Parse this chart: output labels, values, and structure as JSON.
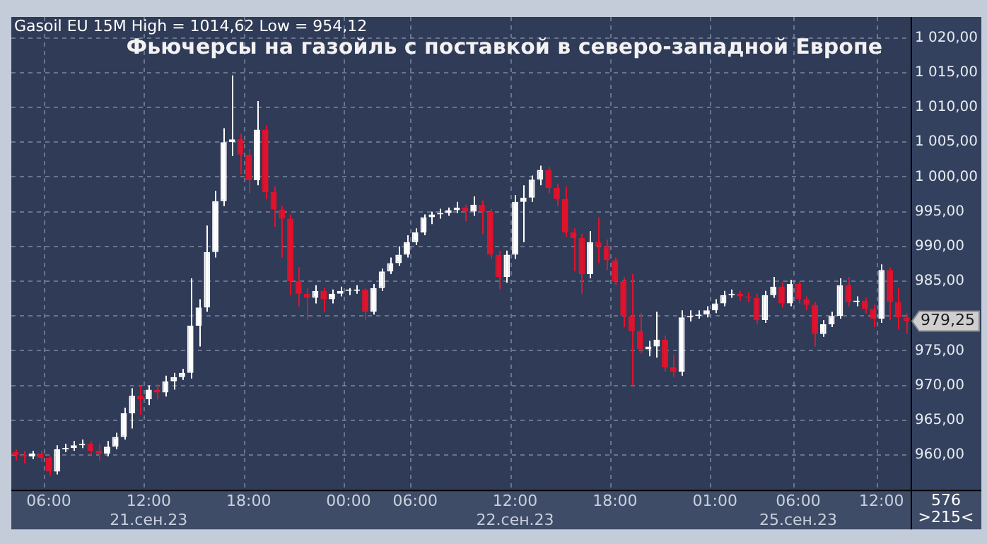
{
  "chart_data": {
    "type": "candlestick",
    "title": "Фьючерсы на газойль с поставкой в северо-западной Европе",
    "subtitle": "Gasoil EU 15M High = 1014,62 Low = 954,12",
    "categories": [
      null,
      null,
      null,
      null,
      "06:00",
      null,
      null,
      null,
      null,
      null,
      null,
      null,
      null,
      null,
      null,
      null,
      "12:00\n21.сен.23",
      null,
      null,
      null,
      null,
      null,
      null,
      null,
      null,
      null,
      null,
      null,
      "18:00",
      null,
      null,
      null,
      null,
      null,
      null,
      null,
      null,
      null,
      null,
      null,
      "00:00",
      null,
      null,
      null,
      null,
      null,
      null,
      null,
      "06:00",
      null,
      null,
      null,
      null,
      null,
      null,
      null,
      null,
      null,
      null,
      null,
      "12:00\n22.сен.23",
      null,
      null,
      null,
      null,
      null,
      null,
      null,
      null,
      null,
      null,
      null,
      "18:00",
      null,
      null,
      null,
      null,
      null,
      null,
      null,
      null,
      null,
      null,
      null,
      "01:00",
      null,
      null,
      null,
      null,
      null,
      null,
      null,
      null,
      null,
      "06:00\n25.сен.23",
      null,
      null,
      null,
      null,
      null,
      null,
      null,
      null,
      null,
      "12:00",
      null,
      null,
      null
    ],
    "colors": [
      "#e2122c",
      "#e2122c",
      "#ffffff",
      "#e2122c",
      "#e2122c",
      "#ffffff",
      "#ffffff",
      "#ffffff",
      "#ffffff",
      "#e2122c",
      "#e2122c",
      "#ffffff",
      "#ffffff",
      "#ffffff",
      "#ffffff",
      "#e2122c",
      "#ffffff",
      "#e2122c",
      "#ffffff",
      "#ffffff",
      "#ffffff",
      "#ffffff",
      "#ffffff",
      "#ffffff",
      "#ffffff",
      "#ffffff",
      "#ffffff",
      "#e2122c",
      "#e2122c",
      "#ffffff",
      "#e2122c",
      "#e2122c",
      "#e2122c",
      "#e2122c",
      "#e2122c",
      "#e2122c",
      "#ffffff",
      "#e2122c",
      "#ffffff",
      "#ffffff",
      "#ffffff",
      "#ffffff",
      "#e2122c",
      "#ffffff",
      "#ffffff",
      "#ffffff",
      "#ffffff",
      "#ffffff",
      "#ffffff",
      "#ffffff",
      "#ffffff",
      "#ffffff",
      "#ffffff",
      "#ffffff",
      "#e2122c",
      "#ffffff",
      "#e2122c",
      "#e2122c",
      "#e2122c",
      "#ffffff",
      "#ffffff",
      "#ffffff",
      "#ffffff",
      "#ffffff",
      "#e2122c",
      "#e2122c",
      "#e2122c",
      "#e2122c",
      "#e2122c",
      "#ffffff",
      "#e2122c",
      "#e2122c",
      "#e2122c",
      "#e2122c",
      "#e2122c",
      "#e2122c",
      "#ffffff",
      "#ffffff",
      "#e2122c",
      "#e2122c",
      "#ffffff",
      "#ffffff",
      "#ffffff",
      "#ffffff",
      "#ffffff",
      "#ffffff",
      "#ffffff",
      "#e2122c",
      "#e2122c",
      "#e2122c",
      "#ffffff",
      "#ffffff",
      "#e2122c",
      "#ffffff",
      "#e2122c",
      "#e2122c",
      "#e2122c",
      "#ffffff",
      "#ffffff",
      "#ffffff",
      "#e2122c",
      "#ffffff",
      "#e2122c",
      "#e2122c",
      "#ffffff",
      "#e2122c",
      "#e2122c",
      "#e2122c"
    ],
    "ohlc": [
      [
        960.4,
        960.8,
        959.2,
        960.0
      ],
      [
        960.0,
        960.6,
        958.8,
        959.8
      ],
      [
        959.8,
        960.6,
        959.4,
        960.2
      ],
      [
        960.2,
        960.6,
        959.0,
        959.6
      ],
      [
        959.6,
        959.8,
        957.0,
        957.6
      ],
      [
        957.6,
        961.4,
        957.2,
        960.8
      ],
      [
        960.8,
        961.6,
        960.4,
        961.0
      ],
      [
        961.0,
        962.0,
        960.6,
        961.4
      ],
      [
        961.4,
        962.2,
        961.0,
        961.6
      ],
      [
        961.6,
        962.0,
        960.0,
        960.6
      ],
      [
        960.6,
        961.6,
        959.2,
        960.2
      ],
      [
        960.2,
        962.0,
        959.8,
        961.2
      ],
      [
        961.2,
        963.2,
        960.8,
        962.6
      ],
      [
        962.6,
        966.8,
        962.2,
        966.0
      ],
      [
        966.0,
        969.6,
        963.8,
        968.5
      ],
      [
        968.5,
        970.0,
        965.8,
        968.0
      ],
      [
        968.0,
        970.0,
        967.2,
        969.4
      ],
      [
        969.4,
        970.2,
        968.0,
        969.0
      ],
      [
        969.0,
        971.4,
        968.4,
        970.6
      ],
      [
        970.6,
        971.8,
        969.4,
        971.2
      ],
      [
        971.2,
        972.4,
        970.8,
        971.8
      ],
      [
        971.8,
        985.4,
        971.0,
        978.6
      ],
      [
        978.6,
        982.4,
        975.6,
        981.2
      ],
      [
        981.2,
        993.0,
        980.6,
        989.2
      ],
      [
        989.2,
        998.0,
        988.4,
        996.5
      ],
      [
        996.5,
        1007.0,
        995.8,
        1005.0
      ],
      [
        1005.0,
        1014.6,
        1003.0,
        1005.4
      ],
      [
        1005.4,
        1006.2,
        1000.4,
        1003.2
      ],
      [
        1003.2,
        1004.0,
        997.6,
        999.5
      ],
      [
        999.5,
        1010.9,
        998.8,
        1006.8
      ],
      [
        1006.8,
        1007.4,
        996.8,
        997.8
      ],
      [
        997.8,
        998.6,
        992.8,
        995.3
      ],
      [
        995.3,
        995.8,
        988.4,
        994.0
      ],
      [
        994.0,
        994.6,
        983.0,
        985.0
      ],
      [
        985.0,
        987.0,
        981.4,
        983.2
      ],
      [
        983.2,
        984.0,
        979.4,
        982.6
      ],
      [
        982.6,
        984.4,
        981.8,
        983.6
      ],
      [
        983.6,
        984.0,
        980.6,
        982.4
      ],
      [
        982.4,
        983.8,
        981.8,
        983.2
      ],
      [
        983.2,
        984.2,
        982.8,
        983.6
      ],
      [
        983.6,
        984.0,
        983.0,
        983.6
      ],
      [
        983.6,
        984.4,
        983.2,
        983.8
      ],
      [
        983.8,
        984.0,
        979.4,
        980.6
      ],
      [
        980.6,
        984.6,
        980.2,
        984.0
      ],
      [
        984.0,
        986.8,
        983.6,
        986.4
      ],
      [
        986.4,
        988.4,
        986.0,
        987.6
      ],
      [
        987.6,
        990.0,
        987.2,
        988.8
      ],
      [
        988.8,
        991.6,
        988.4,
        990.6
      ],
      [
        990.6,
        992.6,
        990.2,
        992.0
      ],
      [
        992.0,
        994.6,
        991.6,
        994.2
      ],
      [
        994.2,
        995.0,
        993.2,
        994.6
      ],
      [
        994.6,
        995.4,
        994.0,
        994.8
      ],
      [
        994.8,
        995.6,
        994.4,
        995.2
      ],
      [
        995.2,
        996.4,
        994.8,
        995.6
      ],
      [
        995.6,
        996.0,
        993.6,
        995.0
      ],
      [
        995.0,
        997.2,
        994.4,
        996.0
      ],
      [
        996.0,
        996.6,
        991.8,
        995.0
      ],
      [
        995.0,
        995.4,
        988.2,
        988.8
      ],
      [
        988.8,
        989.4,
        983.8,
        985.6
      ],
      [
        985.6,
        989.4,
        984.8,
        988.8
      ],
      [
        988.8,
        997.4,
        988.2,
        996.4
      ],
      [
        996.4,
        998.8,
        990.6,
        997.0
      ],
      [
        997.0,
        1000.2,
        996.4,
        999.6
      ],
      [
        999.6,
        1001.6,
        998.8,
        1001.0
      ],
      [
        1001.0,
        1001.4,
        997.6,
        998.4
      ],
      [
        998.4,
        999.0,
        995.8,
        996.8
      ],
      [
        996.8,
        998.6,
        991.4,
        992.0
      ],
      [
        992.0,
        992.6,
        986.4,
        991.2
      ],
      [
        991.2,
        991.8,
        983.2,
        986.0
      ],
      [
        986.0,
        992.2,
        985.4,
        990.6
      ],
      [
        990.6,
        994.2,
        987.6,
        990.0
      ],
      [
        990.0,
        991.0,
        986.6,
        988.0
      ],
      [
        988.0,
        988.4,
        984.4,
        985.0
      ],
      [
        985.0,
        985.6,
        978.4,
        980.0
      ],
      [
        980.0,
        986.0,
        970.0,
        977.8
      ],
      [
        977.8,
        980.4,
        974.6,
        975.2
      ],
      [
        975.2,
        976.4,
        974.2,
        975.6
      ],
      [
        975.6,
        980.6,
        974.0,
        976.6
      ],
      [
        976.6,
        977.2,
        972.0,
        972.6
      ],
      [
        972.6,
        974.4,
        971.2,
        972.0
      ],
      [
        972.0,
        980.8,
        971.4,
        979.8
      ],
      [
        979.8,
        980.8,
        979.2,
        980.0
      ],
      [
        980.0,
        980.8,
        979.6,
        980.2
      ],
      [
        980.2,
        981.4,
        979.8,
        980.8
      ],
      [
        980.8,
        982.4,
        980.4,
        981.8
      ],
      [
        981.8,
        983.6,
        981.4,
        983.0
      ],
      [
        983.0,
        983.8,
        982.6,
        983.2
      ],
      [
        983.2,
        983.6,
        982.2,
        982.8
      ],
      [
        982.8,
        983.4,
        982.0,
        982.6
      ],
      [
        982.6,
        983.2,
        978.8,
        979.4
      ],
      [
        979.4,
        983.6,
        979.0,
        983.0
      ],
      [
        983.0,
        985.6,
        982.6,
        984.2
      ],
      [
        984.2,
        984.8,
        981.2,
        981.8
      ],
      [
        981.8,
        985.2,
        981.4,
        984.6
      ],
      [
        984.6,
        985.0,
        981.8,
        982.4
      ],
      [
        982.4,
        982.8,
        980.8,
        981.6
      ],
      [
        981.6,
        982.0,
        975.6,
        977.4
      ],
      [
        977.4,
        979.4,
        977.0,
        978.8
      ],
      [
        978.8,
        980.6,
        978.4,
        980.0
      ],
      [
        980.0,
        985.4,
        979.6,
        984.4
      ],
      [
        984.4,
        985.6,
        981.4,
        982.0
      ],
      [
        982.0,
        982.8,
        981.4,
        982.2
      ],
      [
        982.2,
        982.6,
        980.4,
        981.0
      ],
      [
        981.0,
        981.6,
        978.4,
        979.6
      ],
      [
        979.6,
        987.4,
        979.0,
        986.6
      ],
      [
        986.6,
        987.0,
        979.4,
        982.0
      ],
      [
        982.0,
        984.0,
        978.0,
        979.8
      ],
      [
        979.8,
        980.4,
        977.4,
        979.25
      ]
    ],
    "ylim": [
      955,
      1023
    ],
    "yticks": [
      {
        "value": 960,
        "label": "960,00"
      },
      {
        "value": 965,
        "label": "965,00"
      },
      {
        "value": 970,
        "label": "970,00"
      },
      {
        "value": 975,
        "label": "975,00"
      },
      {
        "value": 980,
        "label": null
      },
      {
        "value": 985,
        "label": "985,00"
      },
      {
        "value": 990,
        "label": "990,00"
      },
      {
        "value": 995,
        "label": "995,00"
      },
      {
        "value": 1000,
        "label": "1 000,00"
      },
      {
        "value": 1005,
        "label": "1 005,00"
      },
      {
        "value": 1010,
        "label": "1 010,00"
      },
      {
        "value": 1015,
        "label": "1 015,00"
      },
      {
        "value": 1020,
        "label": "1 020,00"
      }
    ],
    "grid": true,
    "annotations": [
      "979,25",
      "576",
      ">215<"
    ]
  }
}
